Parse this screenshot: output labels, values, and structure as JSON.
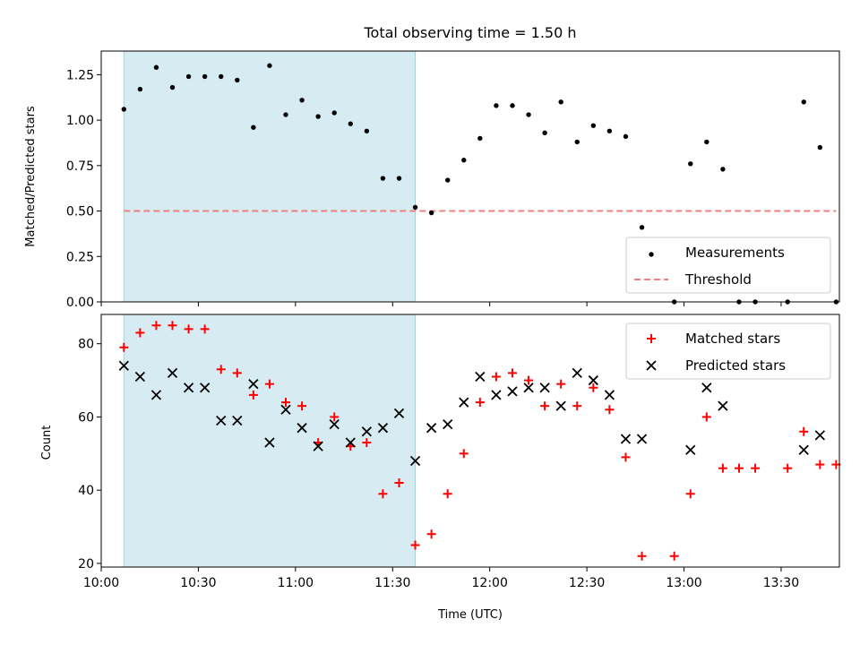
{
  "chart_data": [
    {
      "type": "scatter",
      "title": "Total observing time = 1.50 h",
      "xlabel": "",
      "ylabel": "Matched/Predicted stars",
      "xlim": [
        "10:00",
        "13:48"
      ],
      "ylim": [
        0,
        1.38
      ],
      "yticks": [
        "0.00",
        "0.25",
        "0.50",
        "0.75",
        "1.00",
        "1.25"
      ],
      "shaded_interval": {
        "start": "10:07",
        "end": "11:37",
        "color": "#add8e6"
      },
      "legend_position": "lower right",
      "series": [
        {
          "name": "Measurements",
          "marker": "dot",
          "color": "#000000",
          "points": [
            [
              "10:07",
              1.06
            ],
            [
              "10:12",
              1.17
            ],
            [
              "10:17",
              1.29
            ],
            [
              "10:22",
              1.18
            ],
            [
              "10:27",
              1.24
            ],
            [
              "10:32",
              1.24
            ],
            [
              "10:37",
              1.24
            ],
            [
              "10:42",
              1.22
            ],
            [
              "10:47",
              0.96
            ],
            [
              "10:52",
              1.3
            ],
            [
              "10:57",
              1.03
            ],
            [
              "11:02",
              1.11
            ],
            [
              "11:07",
              1.02
            ],
            [
              "11:12",
              1.04
            ],
            [
              "11:17",
              0.98
            ],
            [
              "11:22",
              0.94
            ],
            [
              "11:27",
              0.68
            ],
            [
              "11:32",
              0.68
            ],
            [
              "11:37",
              0.52
            ],
            [
              "11:42",
              0.49
            ],
            [
              "11:47",
              0.67
            ],
            [
              "11:52",
              0.78
            ],
            [
              "11:57",
              0.9
            ],
            [
              "12:02",
              1.08
            ],
            [
              "12:07",
              1.08
            ],
            [
              "12:12",
              1.03
            ],
            [
              "12:17",
              0.93
            ],
            [
              "12:22",
              1.1
            ],
            [
              "12:27",
              0.88
            ],
            [
              "12:32",
              0.97
            ],
            [
              "12:37",
              0.94
            ],
            [
              "12:42",
              0.91
            ],
            [
              "12:47",
              0.41
            ],
            [
              "12:57",
              0.0
            ],
            [
              "13:02",
              0.76
            ],
            [
              "13:07",
              0.88
            ],
            [
              "13:12",
              0.73
            ],
            [
              "13:17",
              0.0
            ],
            [
              "13:22",
              0.0
            ],
            [
              "13:32",
              0.0
            ],
            [
              "13:37",
              1.1
            ],
            [
              "13:42",
              0.85
            ],
            [
              "13:47",
              0.0
            ]
          ]
        },
        {
          "name": "Threshold",
          "marker": "dashed-line",
          "color": "#f08080",
          "points": [
            [
              "10:07",
              0.5
            ],
            [
              "13:47",
              0.5
            ]
          ]
        }
      ]
    },
    {
      "type": "scatter",
      "title": "",
      "xlabel": "Time (UTC)",
      "ylabel": "Count",
      "xlim": [
        "10:00",
        "13:48"
      ],
      "ylim": [
        19,
        88
      ],
      "yticks": [
        "20",
        "40",
        "60",
        "80"
      ],
      "xticks": [
        "10:00",
        "10:30",
        "11:00",
        "11:30",
        "12:00",
        "12:30",
        "13:00",
        "13:30"
      ],
      "shaded_interval": {
        "start": "10:07",
        "end": "11:37",
        "color": "#add8e6"
      },
      "legend_position": "upper right",
      "series": [
        {
          "name": "Matched stars",
          "marker": "plus",
          "color": "#ff0000",
          "points": [
            [
              "10:07",
              79
            ],
            [
              "10:12",
              83
            ],
            [
              "10:17",
              85
            ],
            [
              "10:22",
              85
            ],
            [
              "10:27",
              84
            ],
            [
              "10:32",
              84
            ],
            [
              "10:37",
              73
            ],
            [
              "10:42",
              72
            ],
            [
              "10:47",
              66
            ],
            [
              "10:52",
              69
            ],
            [
              "10:57",
              64
            ],
            [
              "11:02",
              63
            ],
            [
              "11:07",
              53
            ],
            [
              "11:12",
              60
            ],
            [
              "11:17",
              52
            ],
            [
              "11:22",
              53
            ],
            [
              "11:27",
              39
            ],
            [
              "11:32",
              42
            ],
            [
              "11:37",
              25
            ],
            [
              "11:42",
              28
            ],
            [
              "11:47",
              39
            ],
            [
              "11:52",
              50
            ],
            [
              "11:57",
              64
            ],
            [
              "12:02",
              71
            ],
            [
              "12:07",
              72
            ],
            [
              "12:12",
              70
            ],
            [
              "12:17",
              63
            ],
            [
              "12:22",
              69
            ],
            [
              "12:27",
              63
            ],
            [
              "12:32",
              68
            ],
            [
              "12:37",
              62
            ],
            [
              "12:42",
              49
            ],
            [
              "12:47",
              22
            ],
            [
              "12:57",
              22
            ],
            [
              "13:02",
              39
            ],
            [
              "13:07",
              60
            ],
            [
              "13:12",
              46
            ],
            [
              "13:17",
              46
            ],
            [
              "13:22",
              46
            ],
            [
              "13:32",
              46
            ],
            [
              "13:37",
              56
            ],
            [
              "13:42",
              47
            ],
            [
              "13:47",
              47
            ]
          ]
        },
        {
          "name": "Predicted stars",
          "marker": "x",
          "color": "#000000",
          "points": [
            [
              "10:07",
              74
            ],
            [
              "10:12",
              71
            ],
            [
              "10:17",
              66
            ],
            [
              "10:22",
              72
            ],
            [
              "10:27",
              68
            ],
            [
              "10:32",
              68
            ],
            [
              "10:37",
              59
            ],
            [
              "10:42",
              59
            ],
            [
              "10:47",
              69
            ],
            [
              "10:52",
              53
            ],
            [
              "10:57",
              62
            ],
            [
              "11:02",
              57
            ],
            [
              "11:07",
              52
            ],
            [
              "11:12",
              58
            ],
            [
              "11:17",
              53
            ],
            [
              "11:22",
              56
            ],
            [
              "11:27",
              57
            ],
            [
              "11:32",
              61
            ],
            [
              "11:37",
              48
            ],
            [
              "11:42",
              57
            ],
            [
              "11:47",
              58
            ],
            [
              "11:52",
              64
            ],
            [
              "11:57",
              71
            ],
            [
              "12:02",
              66
            ],
            [
              "12:07",
              67
            ],
            [
              "12:12",
              68
            ],
            [
              "12:17",
              68
            ],
            [
              "12:22",
              63
            ],
            [
              "12:27",
              72
            ],
            [
              "12:32",
              70
            ],
            [
              "12:37",
              66
            ],
            [
              "12:42",
              54
            ],
            [
              "12:47",
              54
            ],
            [
              "13:02",
              51
            ],
            [
              "13:07",
              68
            ],
            [
              "13:12",
              63
            ],
            [
              "13:37",
              51
            ],
            [
              "13:42",
              55
            ]
          ]
        }
      ]
    }
  ]
}
